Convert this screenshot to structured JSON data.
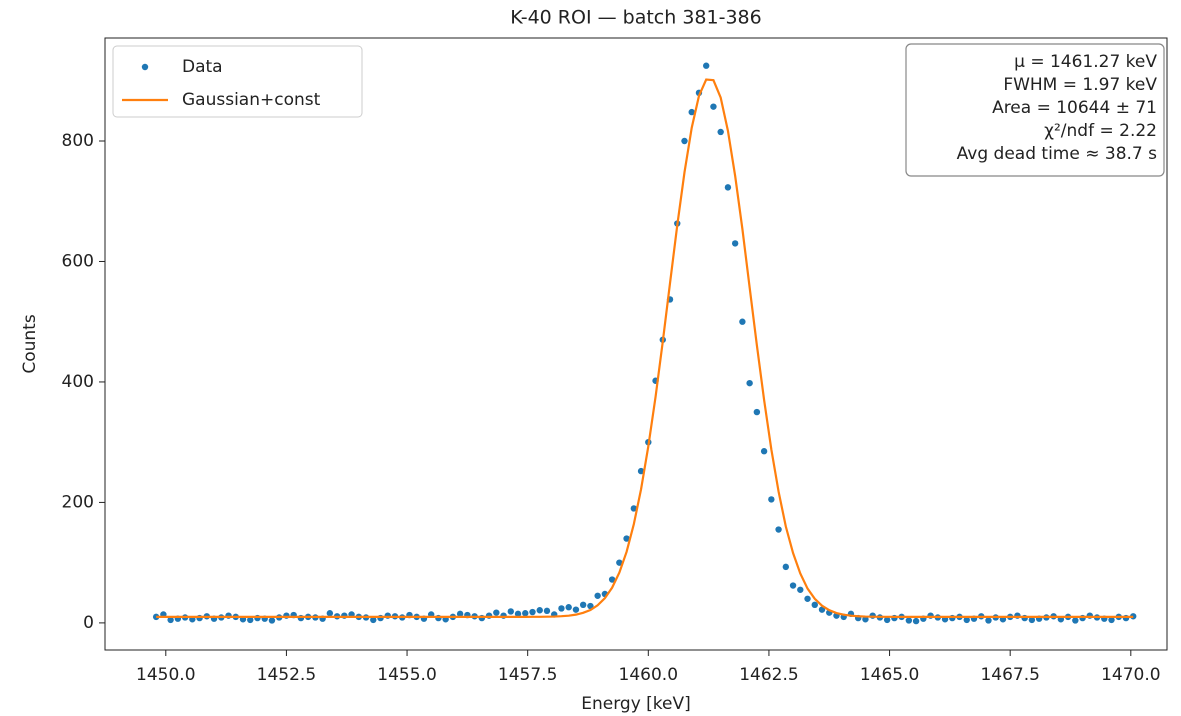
{
  "chart_data": {
    "type": "scatter+line",
    "title": "K-40 ROI — batch 381-386",
    "xlabel": "Energy [keV]",
    "ylabel": "Counts",
    "xlim": [
      1448.74,
      1470.75
    ],
    "ylim": [
      -45,
      971
    ],
    "xticks": [
      {
        "value": 1450,
        "label": "1450.0"
      },
      1452.5,
      {
        "value": 1455,
        "label": "1455.0"
      },
      1457.5,
      {
        "value": 1460,
        "label": "1460.0"
      },
      1462.5,
      {
        "value": 1465,
        "label": "1465.0"
      },
      1467.5,
      {
        "value": 1470,
        "label": "1470.0"
      }
    ],
    "yticks": [
      0,
      200,
      400,
      600,
      800
    ],
    "grid": false,
    "legend": "upper left",
    "annotation": [
      "μ = 1461.27 keV",
      "FWHM = 1.97 keV",
      "Area = 10644 ± 71",
      "χ²/ndf = 2.22",
      "Avg dead time ≈ 38.7 s"
    ],
    "x": [
      1449.8,
      1449.95,
      1450.1,
      1450.25,
      1450.4,
      1450.55,
      1450.7,
      1450.85,
      1451,
      1451.15,
      1451.3,
      1451.45,
      1451.6,
      1451.75,
      1451.9,
      1452.05,
      1452.2,
      1452.35,
      1452.5,
      1452.65,
      1452.8,
      1452.95,
      1453.1,
      1453.25,
      1453.4,
      1453.55,
      1453.7,
      1453.85,
      1454,
      1454.15,
      1454.3,
      1454.45,
      1454.6,
      1454.75,
      1454.9,
      1455.05,
      1455.2,
      1455.35,
      1455.5,
      1455.65,
      1455.8,
      1455.95,
      1456.1,
      1456.25,
      1456.4,
      1456.55,
      1456.7,
      1456.85,
      1457,
      1457.15,
      1457.3,
      1457.45,
      1457.6,
      1457.75,
      1457.9,
      1458.05,
      1458.2,
      1458.35,
      1458.5,
      1458.65,
      1458.8,
      1458.95,
      1459.1,
      1459.25,
      1459.4,
      1459.55,
      1459.7,
      1459.85,
      1460,
      1460.15,
      1460.3,
      1460.45,
      1460.6,
      1460.75,
      1460.9,
      1461.05,
      1461.2,
      1461.35,
      1461.5,
      1461.65,
      1461.8,
      1461.95,
      1462.1,
      1462.25,
      1462.4,
      1462.55,
      1462.7,
      1462.85,
      1463,
      1463.15,
      1463.3,
      1463.45,
      1463.6,
      1463.75,
      1463.9,
      1464.05,
      1464.2,
      1464.35,
      1464.5,
      1464.65,
      1464.8,
      1464.95,
      1465.1,
      1465.25,
      1465.4,
      1465.55,
      1465.7,
      1465.85,
      1466,
      1466.15,
      1466.3,
      1466.45,
      1466.6,
      1466.75,
      1466.9,
      1467.05,
      1467.2,
      1467.35,
      1467.5,
      1467.65,
      1467.8,
      1467.95,
      1468.1,
      1468.25,
      1468.4,
      1468.55,
      1468.7,
      1468.85,
      1469,
      1469.15,
      1469.3,
      1469.45,
      1469.6,
      1469.75,
      1469.9,
      1470.05
    ],
    "series": [
      {
        "name": "Data",
        "color": "#1f77b4",
        "mark": "dot",
        "values": [
          10,
          14,
          5,
          7,
          9,
          6,
          8,
          11,
          7,
          9,
          12,
          10,
          6,
          5,
          8,
          7,
          4,
          9,
          12,
          13,
          8,
          10,
          9,
          7,
          16,
          11,
          12,
          14,
          10,
          9,
          5,
          8,
          12,
          11,
          9,
          13,
          10,
          7,
          14,
          8,
          6,
          10,
          15,
          13,
          11,
          8,
          12,
          17,
          12,
          19,
          15,
          16,
          18,
          21,
          20,
          14,
          24,
          26,
          22,
          30,
          28,
          45,
          48,
          72,
          100,
          140,
          190,
          252,
          300,
          402,
          470,
          537,
          663,
          800,
          848,
          880,
          925,
          857,
          815,
          723,
          630,
          500,
          398,
          350,
          285,
          205,
          155,
          93,
          62,
          55,
          40,
          30,
          22,
          17,
          12,
          10,
          15,
          8,
          6,
          12,
          9,
          5,
          8,
          10,
          4,
          3,
          7,
          12,
          9,
          6,
          8,
          10,
          5,
          7,
          11,
          4,
          9,
          6,
          10,
          12,
          8,
          5,
          7,
          9,
          11,
          6,
          10,
          4,
          8,
          12,
          9,
          7,
          5,
          10,
          8,
          11
        ]
      },
      {
        "name": "Gaussian+const",
        "color": "#ff7f0e",
        "mark": "line",
        "values": [
          10,
          10,
          10,
          10,
          10,
          10,
          10,
          10,
          10,
          10,
          10,
          10,
          10,
          10,
          10,
          10,
          10,
          10,
          10,
          10,
          10,
          10,
          10,
          10,
          10,
          10,
          10,
          10,
          10,
          10,
          10,
          10,
          10,
          10,
          10,
          10,
          10,
          10,
          10,
          10,
          10,
          10,
          10,
          10,
          10,
          10,
          10,
          10,
          10,
          10,
          10,
          10,
          10.1,
          10.1,
          10.3,
          10.5,
          11.1,
          12,
          13.7,
          16.7,
          21.4,
          29.2,
          41,
          58.5,
          83.5,
          118,
          164,
          222,
          293,
          375,
          467,
          564,
          660,
          748,
          822,
          875,
          902,
          901,
          872,
          817,
          742,
          654,
          557,
          461,
          370,
          288,
          218,
          160,
          116,
          82,
          57,
          40,
          28.5,
          21.1,
          16.4,
          13.6,
          12,
          11,
          10.5,
          10.3,
          10.1,
          10.1,
          10,
          10,
          10,
          10,
          10,
          10,
          10,
          10,
          10,
          10,
          10,
          10,
          10,
          10,
          10,
          10,
          10,
          10,
          10,
          10,
          10,
          10,
          10,
          10,
          10,
          10,
          10,
          10,
          10,
          10,
          10,
          10,
          10,
          10
        ]
      }
    ]
  }
}
